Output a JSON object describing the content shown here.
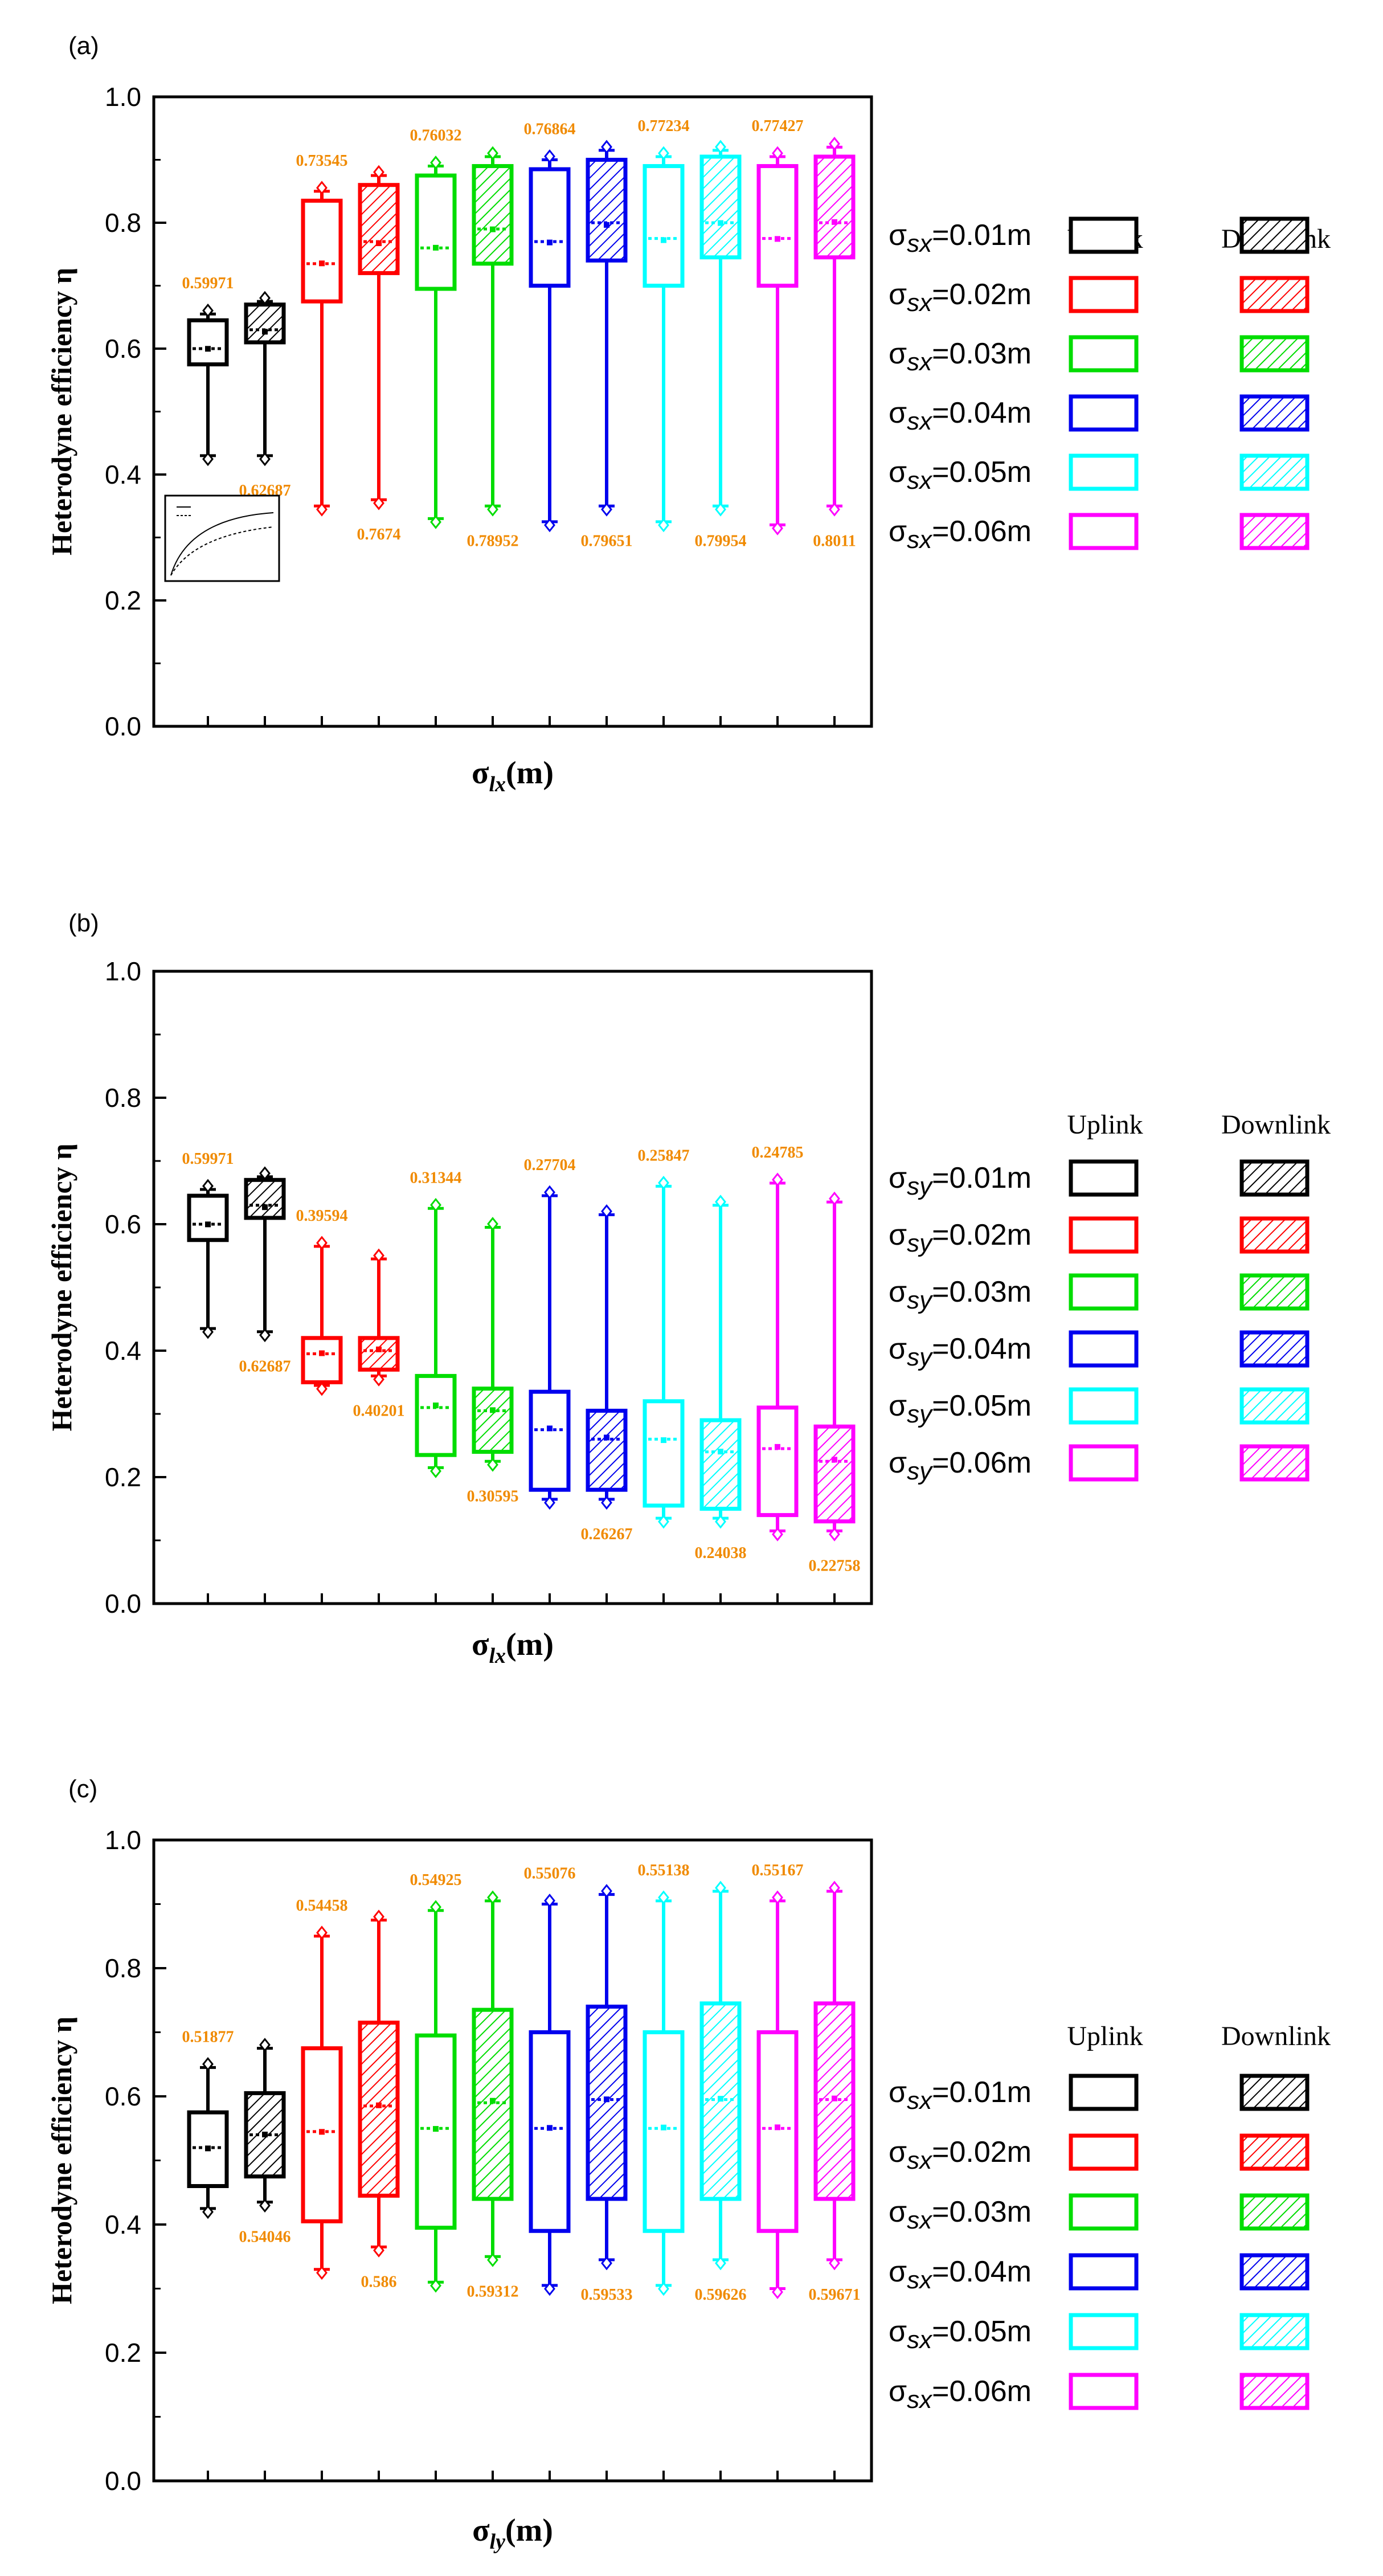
{
  "legend_headers": {
    "uplink": "Uplink",
    "downlink": "Downlink"
  },
  "chart_data": [
    {
      "panel_label": "(a)",
      "type": "box",
      "ylabel": "Heterodyne efficiency η",
      "xlabel": {
        "sym": "σ",
        "sub": "lx",
        "unit": "(m)"
      },
      "ylim": [
        0.0,
        1.0
      ],
      "yticks": [
        "0.0",
        "0.2",
        "0.4",
        "0.6",
        "0.8",
        "1.0"
      ],
      "legend_var": "sx",
      "legend_labels": [
        "σsx=0.01m",
        "σsx=0.02m",
        "σsx=0.03m",
        "σsx=0.04m",
        "σsx=0.05m",
        "σsx=0.06m"
      ],
      "colors": [
        "#000000",
        "#ff0000",
        "#00dd00",
        "#0000ee",
        "#00ffff",
        "#ff00ff"
      ],
      "boxes": [
        {
          "min": 0.43,
          "q1": 0.575,
          "median": 0.6,
          "q3": 0.645,
          "max": 0.655,
          "mean": 0.59971,
          "label": "0.59971",
          "label_pos": "above",
          "hatched": false
        },
        {
          "min": 0.43,
          "q1": 0.61,
          "median": 0.63,
          "q3": 0.67,
          "max": 0.675,
          "mean": 0.62687,
          "label": "0.62687",
          "label_pos": "below",
          "hatched": true
        },
        {
          "min": 0.35,
          "q1": 0.675,
          "median": 0.735,
          "q3": 0.835,
          "max": 0.85,
          "mean": 0.73545,
          "label": "0.73545",
          "label_pos": "above",
          "hatched": false
        },
        {
          "min": 0.36,
          "q1": 0.72,
          "median": 0.77,
          "q3": 0.86,
          "max": 0.875,
          "mean": 0.7674,
          "label": "0.7674",
          "label_pos": "below",
          "hatched": true
        },
        {
          "min": 0.33,
          "q1": 0.695,
          "median": 0.76,
          "q3": 0.875,
          "max": 0.89,
          "mean": 0.76032,
          "label": "0.76032",
          "label_pos": "above",
          "hatched": false
        },
        {
          "min": 0.35,
          "q1": 0.735,
          "median": 0.79,
          "q3": 0.89,
          "max": 0.905,
          "mean": 0.78952,
          "label": "0.78952",
          "label_pos": "below",
          "hatched": true
        },
        {
          "min": 0.325,
          "q1": 0.7,
          "median": 0.77,
          "q3": 0.885,
          "max": 0.9,
          "mean": 0.76864,
          "label": "0.76864",
          "label_pos": "above",
          "hatched": false
        },
        {
          "min": 0.35,
          "q1": 0.74,
          "median": 0.8,
          "q3": 0.9,
          "max": 0.915,
          "mean": 0.79651,
          "label": "0.79651",
          "label_pos": "below",
          "hatched": true
        },
        {
          "min": 0.325,
          "q1": 0.7,
          "median": 0.775,
          "q3": 0.89,
          "max": 0.905,
          "mean": 0.77234,
          "label": "0.77234",
          "label_pos": "above",
          "hatched": false
        },
        {
          "min": 0.35,
          "q1": 0.745,
          "median": 0.8,
          "q3": 0.905,
          "max": 0.915,
          "mean": 0.79954,
          "label": "0.79954",
          "label_pos": "below",
          "hatched": true
        },
        {
          "min": 0.32,
          "q1": 0.7,
          "median": 0.775,
          "q3": 0.89,
          "max": 0.905,
          "mean": 0.77427,
          "label": "0.77427",
          "label_pos": "above",
          "hatched": false
        },
        {
          "min": 0.35,
          "q1": 0.745,
          "median": 0.8,
          "q3": 0.905,
          "max": 0.92,
          "mean": 0.8011,
          "label": "0.8011",
          "label_pos": "below",
          "hatched": true
        }
      ]
    },
    {
      "panel_label": "(b)",
      "type": "box",
      "ylabel": "Heterodyne efficiency η",
      "xlabel": {
        "sym": "σ",
        "sub": "lx",
        "unit": "(m)"
      },
      "ylim": [
        0.0,
        1.0
      ],
      "yticks": [
        "0.0",
        "0.2",
        "0.4",
        "0.6",
        "0.8",
        "1.0"
      ],
      "legend_var": "sy",
      "legend_labels": [
        "σsy=0.01m",
        "σsy=0.02m",
        "σsy=0.03m",
        "σsy=0.04m",
        "σsy=0.05m",
        "σsy=0.06m"
      ],
      "colors": [
        "#000000",
        "#ff0000",
        "#00dd00",
        "#0000ee",
        "#00ffff",
        "#ff00ff"
      ],
      "boxes": [
        {
          "min": 0.435,
          "q1": 0.575,
          "median": 0.6,
          "q3": 0.645,
          "max": 0.655,
          "mean": 0.59971,
          "label": "0.59971",
          "label_pos": "above",
          "hatched": false
        },
        {
          "min": 0.43,
          "q1": 0.61,
          "median": 0.63,
          "q3": 0.67,
          "max": 0.675,
          "mean": 0.62687,
          "label": "0.62687",
          "label_pos": "below",
          "hatched": true
        },
        {
          "min": 0.345,
          "q1": 0.35,
          "median": 0.395,
          "q3": 0.42,
          "max": 0.565,
          "mean": 0.39594,
          "label": "0.39594",
          "label_pos": "above",
          "hatched": false
        },
        {
          "min": 0.36,
          "q1": 0.37,
          "median": 0.4,
          "q3": 0.42,
          "max": 0.545,
          "mean": 0.40201,
          "label": "0.40201",
          "label_pos": "below",
          "hatched": true
        },
        {
          "min": 0.215,
          "q1": 0.235,
          "median": 0.31,
          "q3": 0.36,
          "max": 0.625,
          "mean": 0.31344,
          "label": "0.31344",
          "label_pos": "above",
          "hatched": false
        },
        {
          "min": 0.225,
          "q1": 0.24,
          "median": 0.305,
          "q3": 0.34,
          "max": 0.595,
          "mean": 0.30595,
          "label": "0.30595",
          "label_pos": "below",
          "hatched": true
        },
        {
          "min": 0.165,
          "q1": 0.18,
          "median": 0.275,
          "q3": 0.335,
          "max": 0.645,
          "mean": 0.27704,
          "label": "0.27704",
          "label_pos": "above",
          "hatched": false
        },
        {
          "min": 0.165,
          "q1": 0.18,
          "median": 0.26,
          "q3": 0.305,
          "max": 0.615,
          "mean": 0.26267,
          "label": "0.26267",
          "label_pos": "below",
          "hatched": true
        },
        {
          "min": 0.135,
          "q1": 0.155,
          "median": 0.26,
          "q3": 0.32,
          "max": 0.66,
          "mean": 0.25847,
          "label": "0.25847",
          "label_pos": "above",
          "hatched": false
        },
        {
          "min": 0.135,
          "q1": 0.15,
          "median": 0.24,
          "q3": 0.29,
          "max": 0.63,
          "mean": 0.24038,
          "label": "0.24038",
          "label_pos": "below",
          "hatched": true
        },
        {
          "min": 0.115,
          "q1": 0.14,
          "median": 0.245,
          "q3": 0.31,
          "max": 0.665,
          "mean": 0.24785,
          "label": "0.24785",
          "label_pos": "above",
          "hatched": false
        },
        {
          "min": 0.115,
          "q1": 0.13,
          "median": 0.225,
          "q3": 0.28,
          "max": 0.635,
          "mean": 0.22758,
          "label": "0.22758",
          "label_pos": "below",
          "hatched": true
        }
      ]
    },
    {
      "panel_label": "(c)",
      "type": "box",
      "ylabel": "Heterodyne efficiency η",
      "xlabel": {
        "sym": "σ",
        "sub": "ly",
        "unit": "(m)"
      },
      "ylim": [
        0.0,
        1.0
      ],
      "yticks": [
        "0.0",
        "0.2",
        "0.4",
        "0.6",
        "0.8",
        "1.0"
      ],
      "legend_var": "sx",
      "legend_labels": [
        "σsx=0.01m",
        "σsx=0.02m",
        "σsx=0.03m",
        "σsx=0.04m",
        "σsx=0.05m",
        "σsx=0.06m"
      ],
      "colors": [
        "#000000",
        "#ff0000",
        "#00dd00",
        "#0000ee",
        "#00ffff",
        "#ff00ff"
      ],
      "boxes": [
        {
          "min": 0.425,
          "q1": 0.46,
          "median": 0.52,
          "q3": 0.575,
          "max": 0.645,
          "mean": 0.51877,
          "label": "0.51877",
          "label_pos": "above",
          "hatched": false
        },
        {
          "min": 0.435,
          "q1": 0.475,
          "median": 0.54,
          "q3": 0.605,
          "max": 0.675,
          "mean": 0.54046,
          "label": "0.54046",
          "label_pos": "below",
          "hatched": true
        },
        {
          "min": 0.33,
          "q1": 0.405,
          "median": 0.545,
          "q3": 0.675,
          "max": 0.85,
          "mean": 0.54458,
          "label": "0.54458",
          "label_pos": "above",
          "hatched": false
        },
        {
          "min": 0.365,
          "q1": 0.445,
          "median": 0.585,
          "q3": 0.715,
          "max": 0.875,
          "mean": 0.586,
          "label": "0.586",
          "label_pos": "below",
          "hatched": true
        },
        {
          "min": 0.31,
          "q1": 0.395,
          "median": 0.55,
          "q3": 0.695,
          "max": 0.89,
          "mean": 0.54925,
          "label": "0.54925",
          "label_pos": "above",
          "hatched": false
        },
        {
          "min": 0.35,
          "q1": 0.44,
          "median": 0.59,
          "q3": 0.735,
          "max": 0.905,
          "mean": 0.59312,
          "label": "0.59312",
          "label_pos": "below",
          "hatched": true
        },
        {
          "min": 0.305,
          "q1": 0.39,
          "median": 0.55,
          "q3": 0.7,
          "max": 0.9,
          "mean": 0.55076,
          "label": "0.55076",
          "label_pos": "above",
          "hatched": false
        },
        {
          "min": 0.345,
          "q1": 0.44,
          "median": 0.595,
          "q3": 0.74,
          "max": 0.915,
          "mean": 0.59533,
          "label": "0.59533",
          "label_pos": "below",
          "hatched": true
        },
        {
          "min": 0.305,
          "q1": 0.39,
          "median": 0.55,
          "q3": 0.7,
          "max": 0.905,
          "mean": 0.55138,
          "label": "0.55138",
          "label_pos": "above",
          "hatched": false
        },
        {
          "min": 0.345,
          "q1": 0.44,
          "median": 0.595,
          "q3": 0.745,
          "max": 0.92,
          "mean": 0.59626,
          "label": "0.59626",
          "label_pos": "below",
          "hatched": true
        },
        {
          "min": 0.3,
          "q1": 0.39,
          "median": 0.55,
          "q3": 0.7,
          "max": 0.905,
          "mean": 0.55167,
          "label": "0.55167",
          "label_pos": "above",
          "hatched": false
        },
        {
          "min": 0.345,
          "q1": 0.44,
          "median": 0.595,
          "q3": 0.745,
          "max": 0.92,
          "mean": 0.59671,
          "label": "0.59671",
          "label_pos": "below",
          "hatched": true
        }
      ]
    }
  ]
}
